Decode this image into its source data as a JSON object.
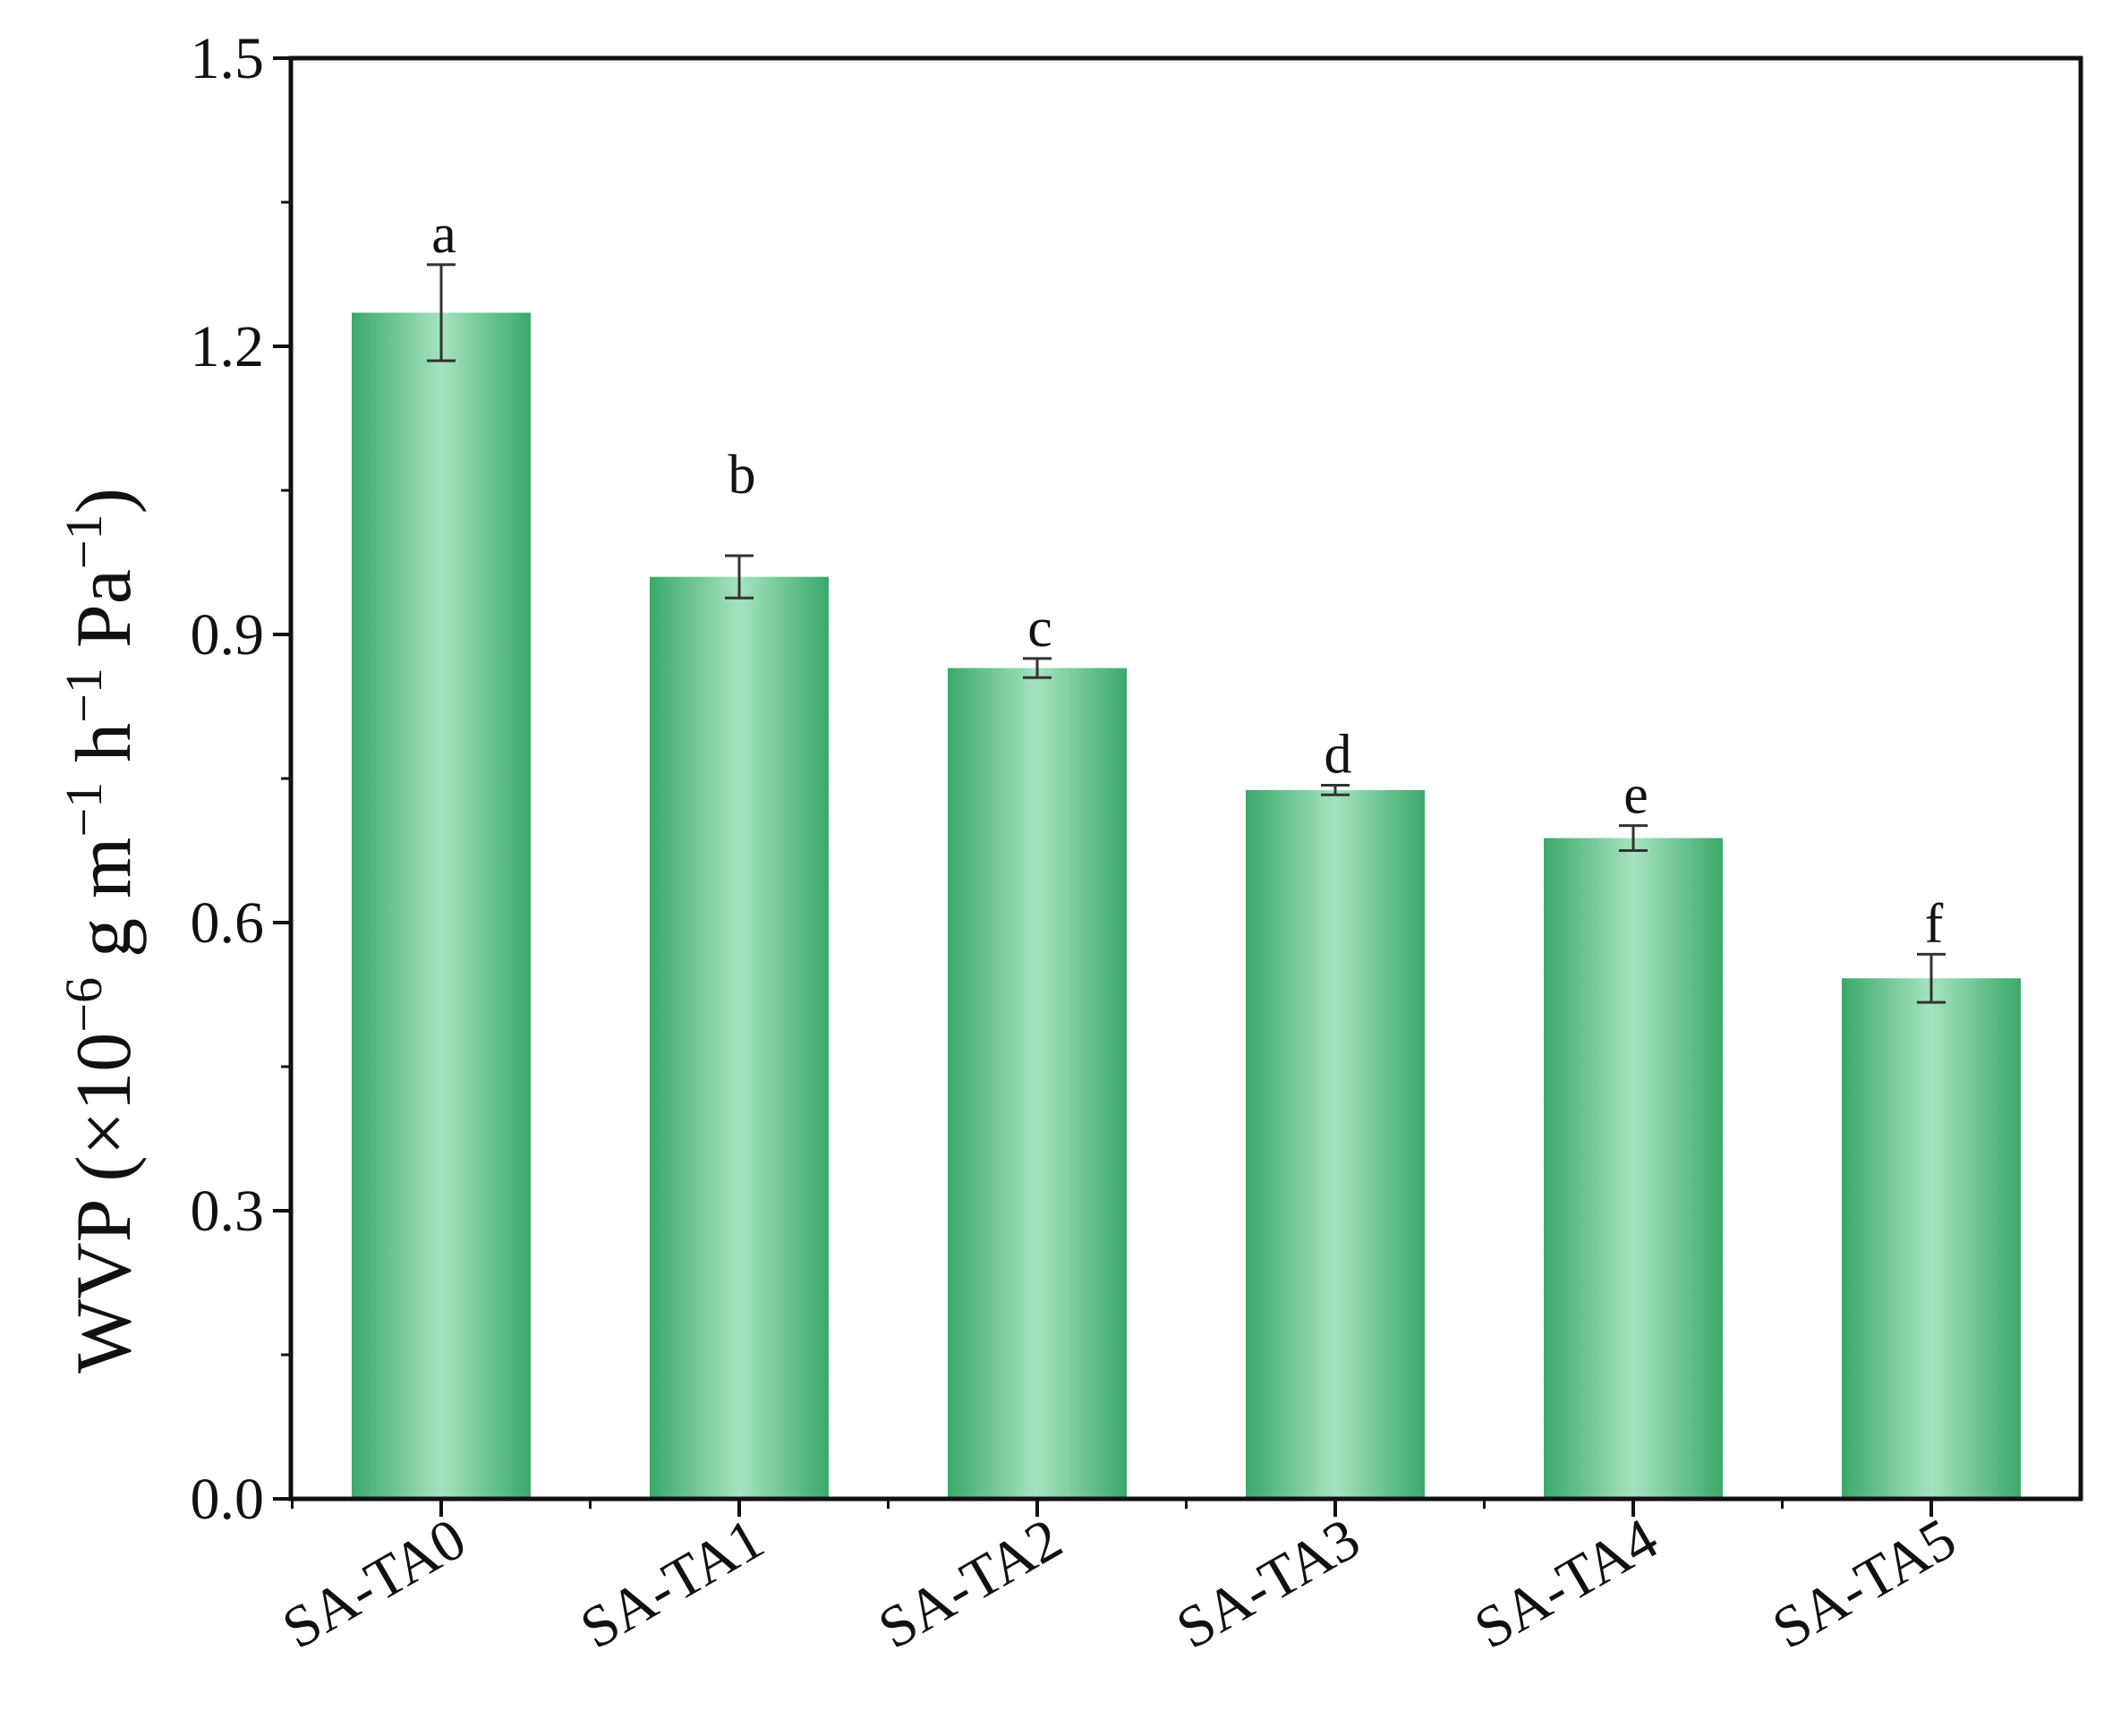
{
  "chart_data": {
    "type": "bar",
    "categories": [
      "SA-TA0",
      "SA-TA1",
      "SA-TA2",
      "SA-TA3",
      "SA-TA4",
      "SA-TA5"
    ],
    "values": [
      1.235,
      0.96,
      0.865,
      0.738,
      0.688,
      0.542
    ],
    "errors": [
      0.05,
      0.022,
      0.01,
      0.005,
      0.013,
      0.025
    ],
    "significance": [
      "a",
      "b",
      "c",
      "d",
      "e",
      "f"
    ],
    "title": "",
    "xlabel": "",
    "ylabel": {
      "main": "WVP (×10",
      "exp1": "−6",
      "mid1": " g m",
      "exp2": "−1",
      "mid2": " h",
      "exp3": "−1",
      "mid3": " Pa",
      "exp4": "−1",
      "end": ")"
    },
    "yticks": [
      "0.0",
      "0.3",
      "0.6",
      "0.9",
      "1.2",
      "1.5"
    ],
    "ylim": [
      0,
      1.5
    ],
    "grid": false,
    "legend": "none",
    "colors": {
      "bar_edge": "#3aa96a",
      "bar_center": "#a6e3c1",
      "axis": "#111111"
    }
  }
}
